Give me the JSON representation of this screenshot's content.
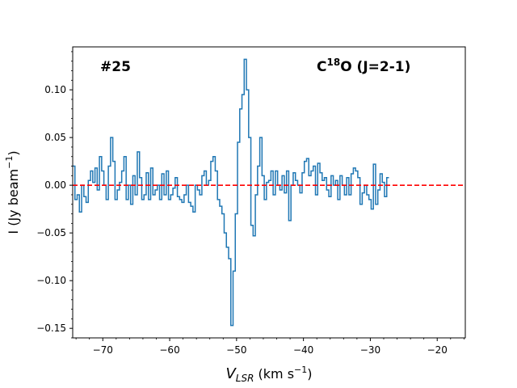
{
  "chart_data": {
    "type": "line",
    "style": "step",
    "title": "",
    "annotations": {
      "left": "#25",
      "right_main": "C",
      "right_sup": "18",
      "right_tail": "O (J=2-1)"
    },
    "xlabel": {
      "main": "V",
      "sub": "LSR",
      "units": " (km s",
      "units_sup": "−1",
      "units_end": ")"
    },
    "ylabel": {
      "main": "I (Jy beam",
      "sup": "−1",
      "end": ")"
    },
    "xlim": [
      -74.5,
      -15.8
    ],
    "ylim": [
      -0.16,
      0.145
    ],
    "xticks": [
      -70,
      -60,
      -50,
      -40,
      -30,
      -20
    ],
    "xtick_labels": [
      "−70",
      "−60",
      "−50",
      "−40",
      "−30",
      "−20"
    ],
    "yticks": [
      -0.15,
      -0.1,
      -0.05,
      0.0,
      0.05,
      0.1
    ],
    "ytick_labels": [
      "−0.15",
      "−0.10",
      "−0.05",
      "0.00",
      "0.05",
      "0.10"
    ],
    "baseline": 0.0,
    "colors": {
      "series": "#1f77b4",
      "baseline": "#ff0000",
      "axes": "#000000"
    },
    "series": [
      {
        "name": "C18O (J=2-1) spectrum #25",
        "x_start": -74.5,
        "x_step": 0.333,
        "values": [
          0.02,
          -0.015,
          -0.01,
          -0.028,
          0.0,
          -0.012,
          -0.018,
          0.005,
          0.015,
          0.003,
          0.018,
          -0.005,
          0.03,
          0.015,
          0.0,
          -0.015,
          0.02,
          0.05,
          0.025,
          -0.015,
          -0.005,
          0.003,
          0.015,
          0.03,
          -0.015,
          0.0,
          -0.02,
          0.01,
          -0.01,
          0.035,
          0.008,
          -0.015,
          -0.01,
          0.013,
          -0.015,
          0.018,
          -0.01,
          -0.005,
          0.0,
          -0.015,
          0.012,
          -0.01,
          0.015,
          -0.015,
          -0.01,
          -0.003,
          0.008,
          -0.012,
          -0.015,
          -0.018,
          -0.01,
          0.0,
          -0.018,
          -0.022,
          -0.028,
          0.0,
          -0.005,
          -0.01,
          0.01,
          0.015,
          0.0,
          0.005,
          0.025,
          0.03,
          0.015,
          -0.015,
          -0.022,
          -0.03,
          -0.05,
          -0.065,
          -0.077,
          -0.147,
          -0.09,
          -0.03,
          0.045,
          0.08,
          0.095,
          0.132,
          0.1,
          0.05,
          -0.042,
          -0.053,
          -0.01,
          0.02,
          0.05,
          0.01,
          -0.015,
          0.003,
          0.005,
          0.015,
          -0.01,
          0.015,
          0.0,
          -0.005,
          0.01,
          -0.008,
          0.015,
          -0.037,
          0.0,
          0.013,
          0.005,
          0.0,
          -0.008,
          0.013,
          0.025,
          0.028,
          0.01,
          0.015,
          0.02,
          -0.01,
          0.023,
          0.013,
          0.005,
          0.008,
          -0.005,
          -0.012,
          0.01,
          0.0,
          0.005,
          -0.015,
          0.01,
          0.0,
          -0.01,
          0.008,
          -0.01,
          0.012,
          0.018,
          0.015,
          0.008,
          -0.02,
          -0.008,
          0.0,
          -0.01,
          -0.015,
          -0.025,
          0.022,
          -0.02,
          -0.005,
          0.012,
          0.003,
          -0.012,
          0.008
        ]
      }
    ]
  }
}
